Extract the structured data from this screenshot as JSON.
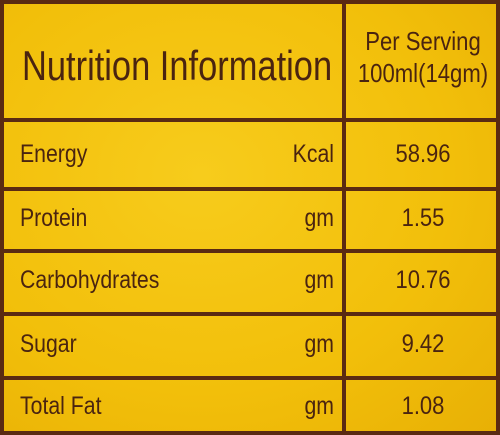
{
  "header": {
    "title": "Nutrition Information",
    "serving_label": "Per Serving",
    "serving_size": "100ml(14gm)"
  },
  "table": {
    "rows": [
      [
        "Energy",
        "Kcal",
        58.96
      ],
      [
        "Protein",
        "gm",
        1.55
      ],
      [
        "Carbohydrates",
        "gm",
        10.76
      ],
      [
        "Sugar",
        "gm",
        9.42
      ],
      [
        "Total Fat",
        "gm",
        1.08
      ]
    ]
  }
}
